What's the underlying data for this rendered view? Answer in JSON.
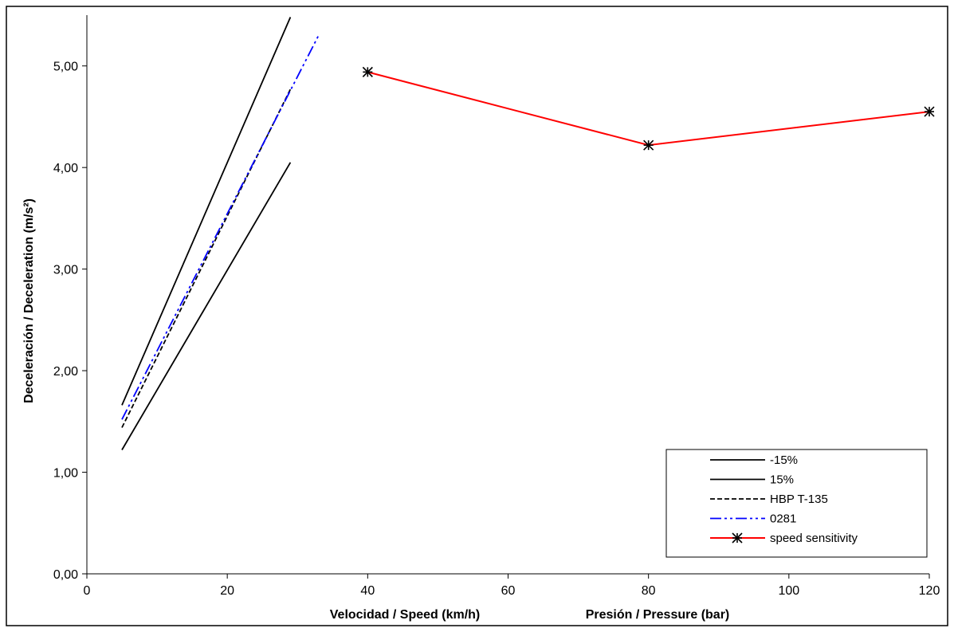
{
  "chart_data": {
    "type": "line",
    "title": "",
    "xlabel": "Velocidad / Speed  (km/h)",
    "xlabel2": "Presión / Pressure (bar)",
    "ylabel": "Deceleración / Deceleration (m/s²)",
    "xlim": [
      0,
      120
    ],
    "ylim": [
      0,
      5.5
    ],
    "x_ticks": [
      0,
      20,
      40,
      60,
      80,
      100,
      120
    ],
    "x_tick_labels": [
      "0",
      "20",
      "40",
      "60",
      "80",
      "100",
      "120"
    ],
    "y_ticks": [
      0,
      1,
      2,
      3,
      4,
      5
    ],
    "y_tick_labels": [
      "0,00",
      "1,00",
      "2,00",
      "3,00",
      "4,00",
      "5,00"
    ],
    "grid": false,
    "legend_position": "bottom-right",
    "series": [
      {
        "name": "-15%",
        "color": "#000000",
        "dash": "solid",
        "marker": "none",
        "x": [
          5,
          29
        ],
        "y": [
          1.66,
          5.48
        ]
      },
      {
        "name": "15%",
        "color": "#000000",
        "dash": "solid",
        "marker": "none",
        "x": [
          5,
          29
        ],
        "y": [
          1.22,
          4.05
        ]
      },
      {
        "name": "HBP T-135",
        "color": "#000000",
        "dash": "dashed",
        "marker": "none",
        "x": [
          5,
          29
        ],
        "y": [
          1.44,
          4.77
        ]
      },
      {
        "name": "0281",
        "color": "#0000ff",
        "dash": "dashdotdot",
        "marker": "none",
        "x": [
          5,
          33
        ],
        "y": [
          1.52,
          5.3
        ]
      },
      {
        "name": "speed sensitivity",
        "color": "#ff0000",
        "dash": "solid",
        "marker": "asterisk",
        "x": [
          40,
          80,
          120
        ],
        "y": [
          4.94,
          4.22,
          4.55
        ]
      }
    ]
  }
}
